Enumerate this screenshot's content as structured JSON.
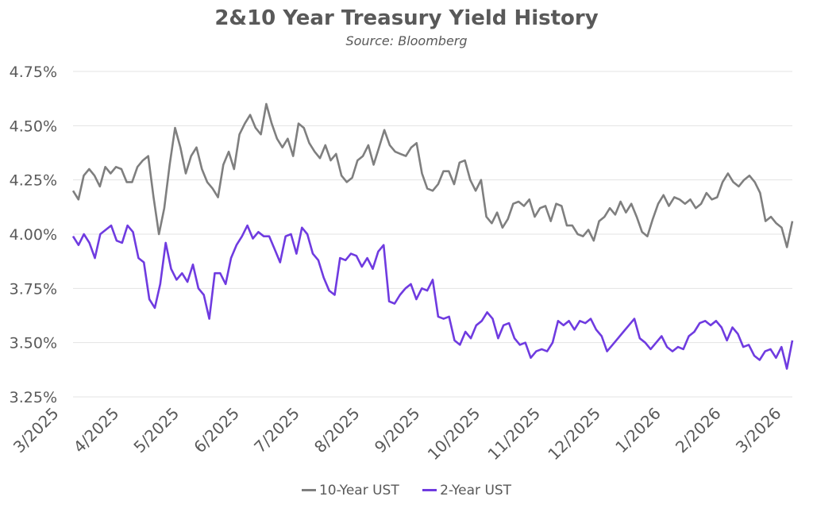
{
  "chart_data": {
    "type": "line",
    "title": "2&10 Year Treasury Yield History",
    "subtitle": "Source: Bloomberg",
    "xlabel": "",
    "ylabel": "",
    "ylim": [
      3.25,
      4.75
    ],
    "y_ticks": [
      "3.25%",
      "3.50%",
      "3.75%",
      "4.00%",
      "4.25%",
      "4.50%",
      "4.75%"
    ],
    "y_tick_values": [
      3.25,
      3.5,
      3.75,
      4.0,
      4.25,
      4.5,
      4.75
    ],
    "x_ticks": [
      "3/2025",
      "4/2025",
      "5/2025",
      "6/2025",
      "7/2025",
      "8/2025",
      "9/2025",
      "10/2025",
      "11/2025",
      "12/2025",
      "1/2026",
      "2/2026",
      "3/2026"
    ],
    "grid": "horizontal",
    "legend_position": "bottom",
    "series": [
      {
        "name": "10-Year UST",
        "color": "#7f7f7f",
        "values": [
          4.2,
          4.16,
          4.27,
          4.3,
          4.27,
          4.22,
          4.31,
          4.28,
          4.31,
          4.3,
          4.24,
          4.24,
          4.31,
          4.34,
          4.36,
          4.17,
          4.0,
          4.12,
          4.32,
          4.49,
          4.4,
          4.28,
          4.36,
          4.4,
          4.3,
          4.24,
          4.21,
          4.17,
          4.32,
          4.38,
          4.3,
          4.46,
          4.51,
          4.55,
          4.49,
          4.46,
          4.6,
          4.51,
          4.44,
          4.4,
          4.44,
          4.36,
          4.51,
          4.49,
          4.42,
          4.38,
          4.35,
          4.41,
          4.34,
          4.37,
          4.27,
          4.24,
          4.26,
          4.34,
          4.36,
          4.41,
          4.32,
          4.4,
          4.48,
          4.41,
          4.38,
          4.37,
          4.36,
          4.4,
          4.42,
          4.28,
          4.21,
          4.2,
          4.23,
          4.29,
          4.29,
          4.23,
          4.33,
          4.34,
          4.25,
          4.2,
          4.25,
          4.08,
          4.05,
          4.1,
          4.03,
          4.07,
          4.14,
          4.15,
          4.13,
          4.16,
          4.08,
          4.12,
          4.13,
          4.06,
          4.14,
          4.13,
          4.04,
          4.04,
          4.0,
          3.99,
          4.02,
          3.97,
          4.06,
          4.08,
          4.12,
          4.09,
          4.15,
          4.1,
          4.14,
          4.08,
          4.01,
          3.99,
          4.07,
          4.14,
          4.18,
          4.13,
          4.17,
          4.16,
          4.14,
          4.16,
          4.12,
          4.14,
          4.19,
          4.16,
          4.17,
          4.24,
          4.28,
          4.24,
          4.22,
          4.25,
          4.27,
          4.24,
          4.19,
          4.06,
          4.08,
          4.05,
          4.03,
          3.94,
          4.06
        ]
      },
      {
        "name": "2-Year UST",
        "color": "#6f3be0",
        "values": [
          3.99,
          3.95,
          4.0,
          3.96,
          3.89,
          4.0,
          4.02,
          4.04,
          3.97,
          3.96,
          4.04,
          4.01,
          3.89,
          3.87,
          3.7,
          3.66,
          3.77,
          3.96,
          3.84,
          3.79,
          3.82,
          3.78,
          3.86,
          3.75,
          3.72,
          3.61,
          3.82,
          3.82,
          3.77,
          3.89,
          3.95,
          3.99,
          4.04,
          3.98,
          4.01,
          3.99,
          3.99,
          3.93,
          3.87,
          3.99,
          4.0,
          3.91,
          4.03,
          4.0,
          3.91,
          3.88,
          3.8,
          3.74,
          3.72,
          3.89,
          3.88,
          3.91,
          3.9,
          3.85,
          3.89,
          3.84,
          3.92,
          3.95,
          3.69,
          3.68,
          3.72,
          3.75,
          3.77,
          3.7,
          3.75,
          3.74,
          3.79,
          3.62,
          3.61,
          3.62,
          3.51,
          3.49,
          3.55,
          3.52,
          3.58,
          3.6,
          3.64,
          3.61,
          3.52,
          3.58,
          3.59,
          3.52,
          3.49,
          3.5,
          3.43,
          3.46,
          3.47,
          3.46,
          3.5,
          3.6,
          3.58,
          3.6,
          3.56,
          3.6,
          3.59,
          3.61,
          3.56,
          3.53,
          3.46,
          3.49,
          3.52,
          3.55,
          3.58,
          3.61,
          3.52,
          3.5,
          3.47,
          3.5,
          3.53,
          3.48,
          3.46,
          3.48,
          3.47,
          3.53,
          3.55,
          3.59,
          3.6,
          3.58,
          3.6,
          3.57,
          3.51,
          3.57,
          3.54,
          3.48,
          3.49,
          3.44,
          3.42,
          3.46,
          3.47,
          3.43,
          3.48,
          3.38,
          3.51
        ]
      }
    ]
  }
}
